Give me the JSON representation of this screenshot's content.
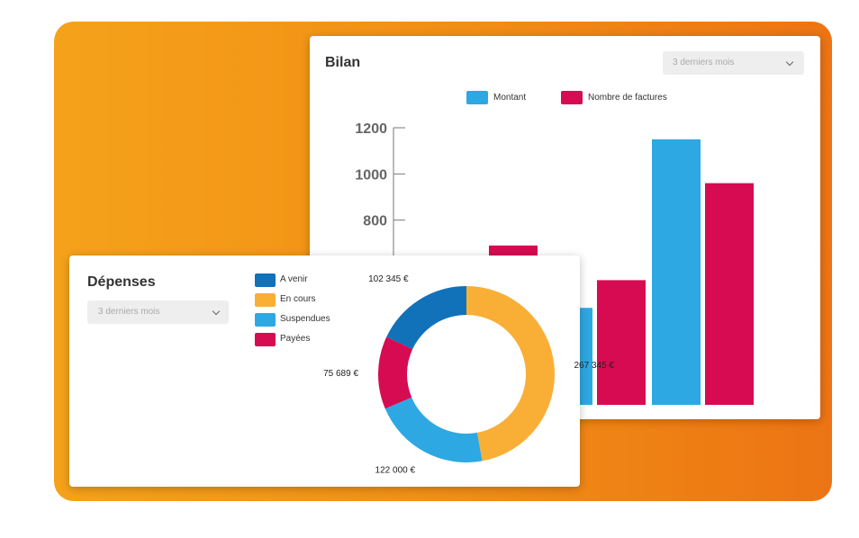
{
  "colors": {
    "montant": "#2ea8e2",
    "factures": "#d60b52",
    "a_venir": "#1171b9",
    "en_cours": "#f9af36",
    "suspendues": "#2ea8e2",
    "payees": "#d60b52"
  },
  "bilan": {
    "title": "Bilan",
    "period_select": "3 derniers mois"
  },
  "depenses": {
    "title": "Dépenses",
    "period_select": "3 derniers mois"
  },
  "chart_data": [
    {
      "type": "bar",
      "title": "Bilan",
      "xlabel": "",
      "ylabel": "",
      "ylim": [
        0,
        1200
      ],
      "yticks": [
        "800",
        "1000",
        "1200"
      ],
      "legend_position": "top",
      "categories": [
        "",
        "",
        ""
      ],
      "series": [
        {
          "name": "Montant",
          "color": "#2ea8e2",
          "values": [
            0,
            420,
            1150
          ]
        },
        {
          "name": "Nombre de factures",
          "color": "#d60b52",
          "values": [
            690,
            540,
            960
          ]
        }
      ]
    },
    {
      "type": "pie",
      "title": "Dépenses",
      "legend_position": "left",
      "slices": [
        {
          "name": "A venir",
          "value": 102345,
          "label": "102 345 €",
          "color": "#1171b9"
        },
        {
          "name": "En cours",
          "value": 267345,
          "label": "267 345 €",
          "color": "#f9af36"
        },
        {
          "name": "Suspendues",
          "value": 122000,
          "label": "122 000 €",
          "color": "#2ea8e2"
        },
        {
          "name": "Payées",
          "value": 75689,
          "label": "75 689 €",
          "color": "#d60b52"
        }
      ]
    }
  ]
}
